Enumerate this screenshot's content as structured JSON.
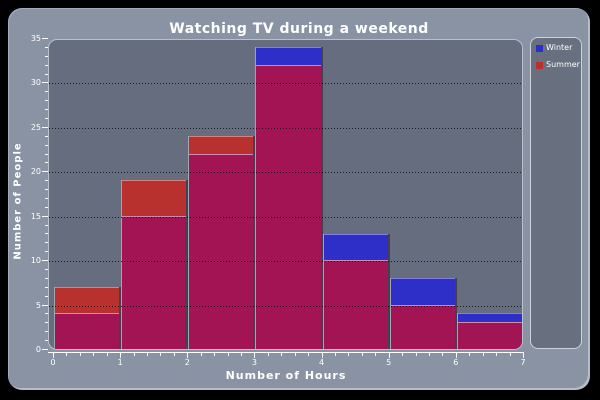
{
  "window": {
    "title": "Watching TV during a weekend"
  },
  "colors": {
    "canvas": "#000000",
    "frame_bg": "#8a93a4",
    "plot_bg": "#656d7e",
    "legend_bg": "#68707f",
    "text": "#ffffff",
    "winter_blue": "#2e2ec8",
    "summer_red": "#b8312f",
    "overlap_magenta": "#a31455"
  },
  "chart_data": {
    "type": "bar",
    "style": "overlapped-histogram",
    "title": "Watching TV during a weekend",
    "xlabel": "Number of Hours",
    "ylabel": "Number of People",
    "xlim": [
      0,
      7
    ],
    "ylim": [
      0,
      35
    ],
    "x_ticks": [
      0,
      1,
      2,
      3,
      4,
      5,
      6,
      7
    ],
    "y_ticks": [
      0,
      5,
      10,
      15,
      20,
      25,
      30,
      35
    ],
    "y_minor_step": 1,
    "x_minor_per_interval": 4,
    "grid": "horizontal-dotted-black",
    "legend_position": "right",
    "bins": [
      "0-1",
      "1-2",
      "2-3",
      "3-4",
      "4-5",
      "5-6",
      "6-7"
    ],
    "series": [
      {
        "name": "Winter",
        "color": "#2e2ec8",
        "edge": "#8080e0",
        "values": [
          4,
          15,
          22,
          34,
          13,
          8,
          4
        ]
      },
      {
        "name": "Summer",
        "color": "#b8312f",
        "edge": "#d8827e",
        "values": [
          7,
          19,
          24,
          32,
          10,
          5,
          3
        ]
      }
    ],
    "overlap_color": "#a31455",
    "overlap_edge": "#d08cb0"
  }
}
